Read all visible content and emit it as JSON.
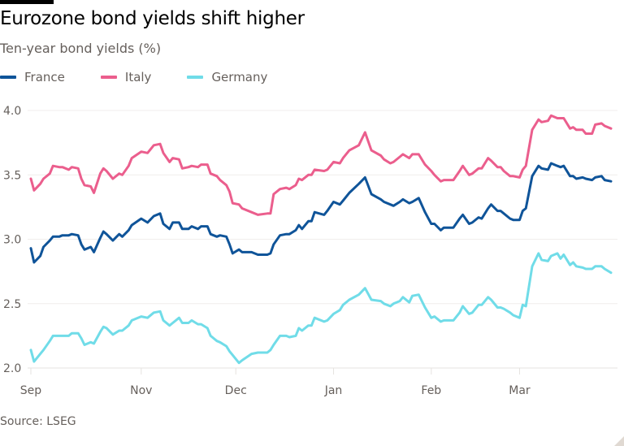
{
  "header": {
    "title": "Eurozone bond yields shift higher",
    "subtitle": "Ten-year bond yields (%)"
  },
  "footer": {
    "source": "Source: LSEG"
  },
  "chart_data": {
    "type": "line",
    "title": "Eurozone bond yields shift higher",
    "subtitle": "Ten-year bond yields (%)",
    "xlabel": "",
    "ylabel": "",
    "ylim": [
      2.0,
      4.0
    ],
    "yticks": [
      2.0,
      2.5,
      3.0,
      3.5,
      4.0
    ],
    "xticks": [
      {
        "label": "Sep",
        "date": "2024-09-27"
      },
      {
        "label": "Nov",
        "date": "2024-11-01"
      },
      {
        "label": "Dec",
        "date": "2024-12-01"
      },
      {
        "label": "Jan",
        "date": "2025-01-01"
      },
      {
        "label": "Feb",
        "date": "2025-02-01"
      },
      {
        "label": "Mar",
        "date": "2025-03-01"
      }
    ],
    "grid": "horizontal",
    "legend": "top-left",
    "x": [
      "2024-09-27",
      "2024-09-28",
      "2024-09-30",
      "2024-10-01",
      "2024-10-03",
      "2024-10-04",
      "2024-10-06",
      "2024-10-07",
      "2024-10-09",
      "2024-10-10",
      "2024-10-12",
      "2024-10-13",
      "2024-10-14",
      "2024-10-16",
      "2024-10-17",
      "2024-10-19",
      "2024-10-20",
      "2024-10-21",
      "2024-10-23",
      "2024-10-25",
      "2024-10-26",
      "2024-10-28",
      "2024-10-29",
      "2024-11-01",
      "2024-11-03",
      "2024-11-05",
      "2024-11-07",
      "2024-11-08",
      "2024-11-10",
      "2024-11-11",
      "2024-11-13",
      "2024-11-14",
      "2024-11-16",
      "2024-11-17",
      "2024-11-19",
      "2024-11-20",
      "2024-11-22",
      "2024-11-23",
      "2024-11-25",
      "2024-11-26",
      "2024-11-28",
      "2024-11-29",
      "2024-11-30",
      "2024-12-02",
      "2024-12-03",
      "2024-12-06",
      "2024-12-08",
      "2024-12-11",
      "2024-12-12",
      "2024-12-13",
      "2024-12-15",
      "2024-12-17",
      "2024-12-18",
      "2024-12-20",
      "2024-12-21",
      "2024-12-22",
      "2024-12-24",
      "2024-12-25",
      "2024-12-26",
      "2024-12-29",
      "2024-12-30",
      "2025-01-01",
      "2025-01-03",
      "2025-01-04",
      "2025-01-06",
      "2025-01-09",
      "2025-01-11",
      "2025-01-13",
      "2025-01-16",
      "2025-01-17",
      "2025-01-19",
      "2025-01-20",
      "2025-01-22",
      "2025-01-23",
      "2025-01-25",
      "2025-01-26",
      "2025-01-28",
      "2025-01-30",
      "2025-02-01",
      "2025-02-02",
      "2025-02-04",
      "2025-02-05",
      "2025-02-08",
      "2025-02-10",
      "2025-02-11",
      "2025-02-13",
      "2025-02-14",
      "2025-02-16",
      "2025-02-17",
      "2025-02-19",
      "2025-02-20",
      "2025-02-22",
      "2025-02-23",
      "2025-02-24",
      "2025-02-26",
      "2025-02-27",
      "2025-03-01",
      "2025-03-02",
      "2025-03-03",
      "2025-03-05",
      "2025-03-07",
      "2025-03-08",
      "2025-03-10",
      "2025-03-11",
      "2025-03-13",
      "2025-03-14",
      "2025-03-15",
      "2025-03-17",
      "2025-03-18",
      "2025-03-19",
      "2025-03-21",
      "2025-03-22",
      "2025-03-24",
      "2025-03-25",
      "2025-03-27",
      "2025-03-28",
      "2025-03-30"
    ],
    "series": [
      {
        "name": "France",
        "color": "#0f5499",
        "values": [
          2.93,
          2.82,
          2.87,
          2.94,
          2.99,
          3.02,
          3.02,
          3.03,
          3.03,
          3.04,
          3.03,
          2.96,
          2.92,
          2.94,
          2.9,
          3.01,
          3.06,
          3.04,
          2.99,
          3.04,
          3.02,
          3.07,
          3.11,
          3.16,
          3.13,
          3.18,
          3.2,
          3.12,
          3.08,
          3.13,
          3.13,
          3.08,
          3.08,
          3.1,
          3.08,
          3.1,
          3.1,
          3.04,
          3.02,
          3.03,
          3.02,
          2.96,
          2.89,
          2.92,
          2.9,
          2.9,
          2.88,
          2.88,
          2.89,
          2.96,
          3.03,
          3.04,
          3.04,
          3.07,
          3.11,
          3.08,
          3.14,
          3.14,
          3.21,
          3.19,
          3.22,
          3.29,
          3.27,
          3.3,
          3.36,
          3.43,
          3.48,
          3.35,
          3.31,
          3.29,
          3.27,
          3.26,
          3.29,
          3.31,
          3.28,
          3.29,
          3.32,
          3.21,
          3.12,
          3.12,
          3.07,
          3.09,
          3.09,
          3.16,
          3.19,
          3.12,
          3.13,
          3.17,
          3.16,
          3.24,
          3.27,
          3.22,
          3.22,
          3.2,
          3.16,
          3.15,
          3.15,
          3.22,
          3.24,
          3.49,
          3.57,
          3.55,
          3.54,
          3.59,
          3.57,
          3.56,
          3.57,
          3.49,
          3.49,
          3.47,
          3.48,
          3.47,
          3.46,
          3.48,
          3.49,
          3.46,
          3.45
        ]
      },
      {
        "name": "Italy",
        "color": "#eb5e8d",
        "values": [
          3.47,
          3.38,
          3.43,
          3.47,
          3.51,
          3.57,
          3.56,
          3.56,
          3.54,
          3.56,
          3.55,
          3.47,
          3.42,
          3.41,
          3.36,
          3.51,
          3.55,
          3.53,
          3.47,
          3.51,
          3.5,
          3.57,
          3.63,
          3.68,
          3.67,
          3.73,
          3.74,
          3.67,
          3.6,
          3.63,
          3.62,
          3.55,
          3.56,
          3.57,
          3.56,
          3.58,
          3.58,
          3.51,
          3.49,
          3.46,
          3.42,
          3.37,
          3.28,
          3.27,
          3.24,
          3.21,
          3.19,
          3.2,
          3.2,
          3.35,
          3.39,
          3.4,
          3.39,
          3.42,
          3.47,
          3.46,
          3.5,
          3.5,
          3.54,
          3.53,
          3.54,
          3.6,
          3.59,
          3.63,
          3.69,
          3.73,
          3.83,
          3.69,
          3.65,
          3.62,
          3.59,
          3.6,
          3.64,
          3.66,
          3.63,
          3.66,
          3.66,
          3.58,
          3.53,
          3.5,
          3.45,
          3.46,
          3.46,
          3.53,
          3.57,
          3.5,
          3.51,
          3.55,
          3.55,
          3.63,
          3.61,
          3.56,
          3.56,
          3.53,
          3.49,
          3.49,
          3.48,
          3.54,
          3.57,
          3.85,
          3.93,
          3.91,
          3.92,
          3.96,
          3.94,
          3.94,
          3.94,
          3.86,
          3.87,
          3.85,
          3.85,
          3.82,
          3.82,
          3.89,
          3.9,
          3.88,
          3.86
        ]
      },
      {
        "name": "Germany",
        "color": "#70dce8",
        "values": [
          2.14,
          2.05,
          2.11,
          2.14,
          2.21,
          2.25,
          2.25,
          2.25,
          2.25,
          2.27,
          2.27,
          2.23,
          2.18,
          2.2,
          2.19,
          2.28,
          2.32,
          2.31,
          2.26,
          2.29,
          2.29,
          2.33,
          2.37,
          2.4,
          2.39,
          2.43,
          2.44,
          2.37,
          2.33,
          2.35,
          2.39,
          2.35,
          2.35,
          2.37,
          2.34,
          2.34,
          2.31,
          2.25,
          2.21,
          2.2,
          2.17,
          2.13,
          2.1,
          2.04,
          2.06,
          2.11,
          2.12,
          2.12,
          2.14,
          2.18,
          2.25,
          2.25,
          2.24,
          2.25,
          2.31,
          2.29,
          2.33,
          2.33,
          2.39,
          2.36,
          2.37,
          2.42,
          2.45,
          2.49,
          2.53,
          2.57,
          2.62,
          2.53,
          2.52,
          2.5,
          2.48,
          2.5,
          2.52,
          2.55,
          2.51,
          2.56,
          2.57,
          2.47,
          2.39,
          2.4,
          2.36,
          2.37,
          2.37,
          2.43,
          2.48,
          2.42,
          2.43,
          2.49,
          2.49,
          2.55,
          2.53,
          2.47,
          2.47,
          2.46,
          2.43,
          2.41,
          2.39,
          2.49,
          2.48,
          2.79,
          2.89,
          2.84,
          2.83,
          2.87,
          2.89,
          2.85,
          2.88,
          2.8,
          2.82,
          2.79,
          2.78,
          2.77,
          2.77,
          2.79,
          2.79,
          2.77,
          2.74
        ]
      }
    ]
  }
}
